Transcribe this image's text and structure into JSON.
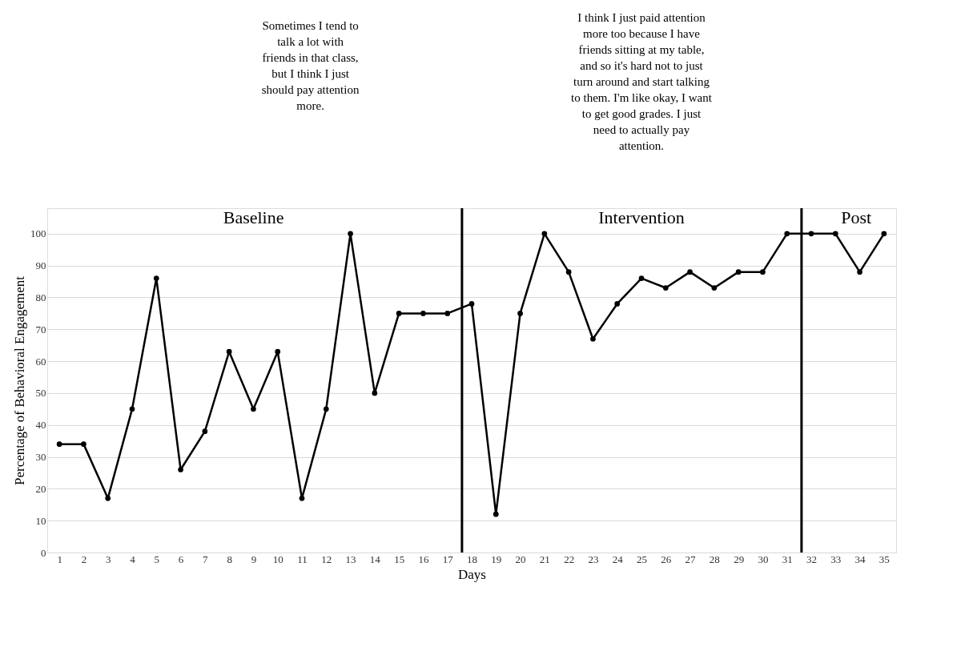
{
  "chart_data": {
    "type": "line",
    "xlabel": "Days",
    "ylabel": "Percentage of Behavioral Engagement",
    "x": [
      1,
      2,
      3,
      4,
      5,
      6,
      7,
      8,
      9,
      10,
      11,
      12,
      13,
      14,
      15,
      16,
      17,
      18,
      19,
      20,
      21,
      22,
      23,
      24,
      25,
      26,
      27,
      28,
      29,
      30,
      31,
      32,
      33,
      34,
      35
    ],
    "series": [
      {
        "color": "#000000",
        "values": [
          34,
          34,
          17,
          45,
          86,
          26,
          38,
          63,
          45,
          63,
          17,
          45,
          100,
          50,
          75,
          75,
          75,
          78,
          12,
          75,
          100,
          88,
          67,
          78,
          86,
          83,
          88,
          83,
          88,
          88,
          100,
          100,
          100,
          88,
          100
        ]
      }
    ],
    "xlim": [
      0.5,
      35.5
    ],
    "xticks": [
      1,
      2,
      3,
      4,
      5,
      6,
      7,
      8,
      9,
      10,
      11,
      12,
      13,
      14,
      15,
      16,
      17,
      18,
      19,
      20,
      21,
      22,
      23,
      24,
      25,
      26,
      27,
      28,
      29,
      30,
      31,
      32,
      33,
      34,
      35
    ],
    "ylim": [
      0,
      108
    ],
    "yticks": [
      0,
      10,
      20,
      30,
      40,
      50,
      60,
      70,
      80,
      90,
      100
    ],
    "grid": "y",
    "marker": "circle",
    "line_style": "solid",
    "ref_lines": [
      {
        "axis": "x",
        "value": 17.6,
        "color": "#000000"
      },
      {
        "axis": "x",
        "value": 31.6,
        "color": "#000000"
      }
    ],
    "annotations": [
      "Baseline",
      "Intervention",
      "Post",
      "Sometimes I tend to talk a lot with friends in that class, but I think I just should pay attention more.",
      "I think I just paid attention more too because I have friends sitting at my table, and so it's hard not to just turn around and start talking to them. I'm like okay, I want to get good grades. I just need to actually pay attention."
    ]
  }
}
